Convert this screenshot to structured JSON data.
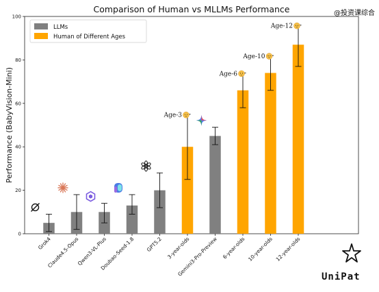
{
  "chart_data": {
    "type": "bar",
    "title": "Comparison of Human vs MLLMs Performance",
    "ylabel": "Performance (BabyVision-Mini)",
    "xlabel": "",
    "ylim": [
      0,
      100
    ],
    "yticks": [
      0,
      20,
      40,
      60,
      80,
      100
    ],
    "grid": false,
    "legend_position": "top-left",
    "categories": [
      "Grok4",
      "Claude4.5-Opus",
      "Qwen3-VL-Plus",
      "Doubao-Seed-1.8",
      "GPT5.2",
      "3-year-olds",
      "Gemini3-Pro-Preview",
      "6-year-olds",
      "10-year-olds",
      "12-year-olds"
    ],
    "series": [
      {
        "name": "LLMs",
        "color": "#808080",
        "points": [
          {
            "category": "Grok4",
            "value": 5.0,
            "err_low": 1.0,
            "err_high": 9.0,
            "icon": "grok-logo-icon"
          },
          {
            "category": "Claude4.5-Opus",
            "value": 10.0,
            "err_low": 2.0,
            "err_high": 18.0,
            "icon": "claude-logo-icon"
          },
          {
            "category": "Qwen3-VL-Plus",
            "value": 10.0,
            "err_low": 5.0,
            "err_high": 14.0,
            "icon": "qwen-logo-icon"
          },
          {
            "category": "Doubao-Seed-1.8",
            "value": 13.0,
            "err_low": 9.0,
            "err_high": 18.0,
            "icon": "doubao-logo-icon"
          },
          {
            "category": "GPT5.2",
            "value": 20.0,
            "err_low": 12.0,
            "err_high": 28.0,
            "icon": "openai-logo-icon"
          },
          {
            "category": "Gemini3-Pro-Preview",
            "value": 45.0,
            "err_low": 41.0,
            "err_high": 49.0,
            "icon": "gemini-logo-icon"
          }
        ]
      },
      {
        "name": "Human of Different Ages",
        "color": "#FFA500",
        "points": [
          {
            "category": "3-year-olds",
            "value": 40.0,
            "err_low": 25.0,
            "err_high": 55.0,
            "label": "Age-3"
          },
          {
            "category": "6-year-olds",
            "value": 66.0,
            "err_low": 58.0,
            "err_high": 74.0,
            "label": "Age-6"
          },
          {
            "category": "10-year-olds",
            "value": 74.0,
            "err_low": 66.0,
            "err_high": 82.0,
            "label": "Age-10"
          },
          {
            "category": "12-year-olds",
            "value": 87.0,
            "err_low": 77.0,
            "err_high": 96.0,
            "label": "Age-12"
          }
        ]
      }
    ]
  },
  "watermark": {
    "top_right": "@投资课综合",
    "bottom_brand": "UniPat"
  }
}
